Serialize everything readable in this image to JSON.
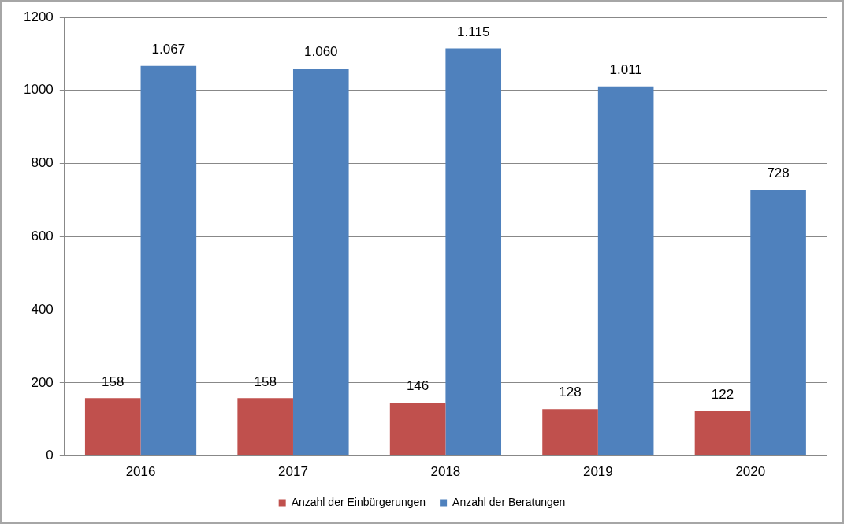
{
  "chart_data": {
    "type": "bar",
    "categories": [
      "2016",
      "2017",
      "2018",
      "2019",
      "2020"
    ],
    "series": [
      {
        "name": "Anzahl der Einbürgerungen",
        "color": "#c0504d",
        "values": [
          158,
          158,
          146,
          128,
          122
        ],
        "value_labels": [
          "158",
          "158",
          "146",
          "128",
          "122"
        ]
      },
      {
        "name": "Anzahl der Beratungen",
        "color": "#4f81bd",
        "values": [
          1067,
          1060,
          1115,
          1011,
          728
        ],
        "value_labels": [
          "1.067",
          "1.060",
          "1.115",
          "1.011",
          "728"
        ]
      }
    ],
    "ylim": [
      0,
      1200
    ],
    "yticks": [
      0,
      200,
      400,
      600,
      800,
      1000,
      1200
    ],
    "grid": "y",
    "legend": "bottom"
  }
}
